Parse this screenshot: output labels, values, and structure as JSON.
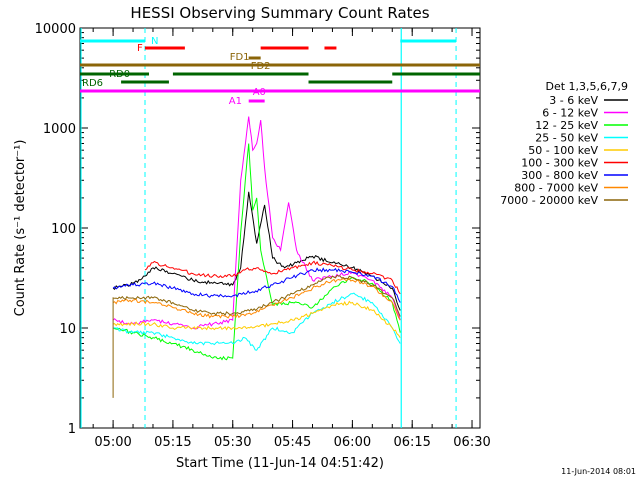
{
  "chart_data": {
    "type": "line",
    "title": "HESSI Observing Summary Count Rates",
    "xlabel": "Start Time (11-Jun-14 04:51:42)",
    "ylabel": "Count Rate (s⁻¹ detector⁻¹)",
    "y_scale": "log",
    "ylim": [
      1,
      10000
    ],
    "xlim": [
      "04:51:42",
      "06:32:00"
    ],
    "x_ticks": [
      "05:00",
      "05:15",
      "05:30",
      "05:45",
      "06:00",
      "06:15",
      "06:30"
    ],
    "y_ticks": [
      "1",
      "10",
      "100",
      "1000",
      "10000"
    ],
    "footer_date": "11-Jun-2014 08:01",
    "legend": {
      "title": "Det 1,3,5,6,7,9",
      "placement": "right"
    },
    "series": [
      {
        "name": "3 - 6 keV",
        "color": "#000000",
        "points": [
          [
            "05:00",
            25
          ],
          [
            "05:05",
            28
          ],
          [
            "05:08",
            33
          ],
          [
            "05:10",
            40
          ],
          [
            "05:15",
            35
          ],
          [
            "05:20",
            30
          ],
          [
            "05:25",
            28
          ],
          [
            "05:30",
            27
          ],
          [
            "05:32",
            40
          ],
          [
            "05:34",
            230
          ],
          [
            "05:36",
            70
          ],
          [
            "05:38",
            170
          ],
          [
            "05:40",
            50
          ],
          [
            "05:43",
            40
          ],
          [
            "05:46",
            45
          ],
          [
            "05:50",
            52
          ],
          [
            "05:55",
            45
          ],
          [
            "06:00",
            40
          ],
          [
            "06:05",
            33
          ],
          [
            "06:10",
            25
          ],
          [
            "06:12",
            15
          ]
        ]
      },
      {
        "name": "6 - 12 keV",
        "color": "#ff00ff",
        "points": [
          [
            "05:00",
            12
          ],
          [
            "05:05",
            11
          ],
          [
            "05:10",
            12
          ],
          [
            "05:15",
            11
          ],
          [
            "05:20",
            10
          ],
          [
            "05:25",
            11
          ],
          [
            "05:30",
            12
          ],
          [
            "05:32",
            300
          ],
          [
            "05:34",
            1300
          ],
          [
            "05:35",
            600
          ],
          [
            "05:36",
            700
          ],
          [
            "05:37",
            1200
          ],
          [
            "05:38",
            400
          ],
          [
            "05:40",
            80
          ],
          [
            "05:42",
            60
          ],
          [
            "05:44",
            180
          ],
          [
            "05:46",
            60
          ],
          [
            "05:50",
            30
          ],
          [
            "05:55",
            33
          ],
          [
            "06:00",
            36
          ],
          [
            "06:05",
            30
          ],
          [
            "06:10",
            20
          ],
          [
            "06:12",
            12
          ]
        ]
      },
      {
        "name": "12 - 25 keV",
        "color": "#00ff00",
        "points": [
          [
            "05:00",
            10
          ],
          [
            "05:05",
            9
          ],
          [
            "05:10",
            8
          ],
          [
            "05:15",
            7
          ],
          [
            "05:20",
            6
          ],
          [
            "05:25",
            5
          ],
          [
            "05:30",
            5
          ],
          [
            "05:32",
            90
          ],
          [
            "05:34",
            700
          ],
          [
            "05:35",
            150
          ],
          [
            "05:36",
            200
          ],
          [
            "05:37",
            60
          ],
          [
            "05:40",
            17
          ],
          [
            "05:45",
            18
          ],
          [
            "05:50",
            16
          ],
          [
            "05:55",
            25
          ],
          [
            "06:00",
            32
          ],
          [
            "06:05",
            28
          ],
          [
            "06:10",
            18
          ],
          [
            "06:12",
            9
          ]
        ]
      },
      {
        "name": "25 - 50 keV",
        "color": "#00ffff",
        "points": [
          [
            "05:00",
            10
          ],
          [
            "05:05",
            9
          ],
          [
            "05:10",
            9
          ],
          [
            "05:15",
            8
          ],
          [
            "05:20",
            7
          ],
          [
            "05:25",
            7
          ],
          [
            "05:30",
            7
          ],
          [
            "05:33",
            8
          ],
          [
            "05:36",
            6
          ],
          [
            "05:40",
            10
          ],
          [
            "05:45",
            9
          ],
          [
            "05:50",
            14
          ],
          [
            "05:55",
            18
          ],
          [
            "06:00",
            22
          ],
          [
            "06:05",
            18
          ],
          [
            "06:10",
            10
          ],
          [
            "06:12",
            7
          ]
        ]
      },
      {
        "name": "50 - 100 keV",
        "color": "#ffcc00",
        "points": [
          [
            "05:00",
            11
          ],
          [
            "05:05",
            11
          ],
          [
            "05:10",
            11
          ],
          [
            "05:15",
            10
          ],
          [
            "05:20",
            10
          ],
          [
            "05:25",
            10
          ],
          [
            "05:30",
            10
          ],
          [
            "05:35",
            10
          ],
          [
            "05:40",
            11
          ],
          [
            "05:45",
            12
          ],
          [
            "05:50",
            14
          ],
          [
            "05:55",
            17
          ],
          [
            "06:00",
            18
          ],
          [
            "06:05",
            15
          ],
          [
            "06:10",
            10
          ],
          [
            "06:12",
            8
          ]
        ]
      },
      {
        "name": "100 - 300 keV",
        "color": "#ff0000",
        "points": [
          [
            "05:08",
            38
          ],
          [
            "05:10",
            45
          ],
          [
            "05:15",
            40
          ],
          [
            "05:20",
            35
          ],
          [
            "05:25",
            33
          ],
          [
            "05:30",
            33
          ],
          [
            "05:33",
            38
          ],
          [
            "05:36",
            40
          ],
          [
            "05:40",
            35
          ],
          [
            "05:45",
            40
          ],
          [
            "05:50",
            45
          ],
          [
            "05:55",
            42
          ],
          [
            "06:00",
            38
          ],
          [
            "06:05",
            35
          ],
          [
            "06:10",
            30
          ],
          [
            "06:12",
            22
          ]
        ]
      },
      {
        "name": "300 - 800 keV",
        "color": "#0000ff",
        "points": [
          [
            "05:00",
            25
          ],
          [
            "05:05",
            27
          ],
          [
            "05:10",
            28
          ],
          [
            "05:15",
            25
          ],
          [
            "05:20",
            22
          ],
          [
            "05:25",
            21
          ],
          [
            "05:30",
            21
          ],
          [
            "05:35",
            23
          ],
          [
            "05:40",
            27
          ],
          [
            "05:45",
            32
          ],
          [
            "05:50",
            38
          ],
          [
            "05:55",
            38
          ],
          [
            "06:00",
            36
          ],
          [
            "06:05",
            33
          ],
          [
            "06:10",
            26
          ],
          [
            "06:12",
            18
          ]
        ]
      },
      {
        "name": "800 - 7000 keV",
        "color": "#ff8800",
        "points": [
          [
            "05:00",
            18
          ],
          [
            "05:05",
            19
          ],
          [
            "05:10",
            18
          ],
          [
            "05:15",
            16
          ],
          [
            "05:20",
            14
          ],
          [
            "05:25",
            13
          ],
          [
            "05:30",
            13
          ],
          [
            "05:35",
            14
          ],
          [
            "05:40",
            17
          ],
          [
            "05:45",
            20
          ],
          [
            "05:50",
            25
          ],
          [
            "05:55",
            30
          ],
          [
            "06:00",
            30
          ],
          [
            "06:05",
            26
          ],
          [
            "06:10",
            18
          ],
          [
            "06:12",
            12
          ]
        ]
      },
      {
        "name": "7000 - 20000 keV",
        "color": "#8b6508",
        "points": [
          [
            "05:00",
            2
          ],
          [
            "05:00",
            20
          ],
          [
            "05:05",
            20
          ],
          [
            "05:10",
            20
          ],
          [
            "05:15",
            18
          ],
          [
            "05:20",
            15
          ],
          [
            "05:25",
            14
          ],
          [
            "05:30",
            14
          ],
          [
            "05:35",
            15
          ],
          [
            "05:40",
            18
          ],
          [
            "05:45",
            22
          ],
          [
            "05:50",
            27
          ],
          [
            "05:55",
            33
          ],
          [
            "06:00",
            32
          ],
          [
            "06:05",
            27
          ],
          [
            "06:10",
            20
          ],
          [
            "06:12",
            13
          ]
        ]
      }
    ],
    "flag_bars": [
      {
        "label": "N",
        "color": "#00ffff",
        "segments": [
          [
            "04:51:42",
            "05:08"
          ],
          [
            "06:12",
            "06:26"
          ]
        ]
      },
      {
        "label": "F",
        "color": "#ff0000",
        "segments": [
          [
            "05:08",
            "05:18"
          ],
          [
            "05:37",
            "05:49"
          ],
          [
            "05:53",
            "05:56"
          ]
        ]
      },
      {
        "label": "FD1",
        "color": "#8b6508",
        "segments": [
          [
            "04:51:42",
            "06:32"
          ]
        ]
      },
      {
        "label": "FD2",
        "color": "#8b6508",
        "segments": [
          [
            "05:34",
            "05:37"
          ]
        ]
      },
      {
        "label": "RD0",
        "color": "#006400",
        "segments": [
          [
            "04:51:42",
            "05:09"
          ],
          [
            "05:15",
            "05:49"
          ],
          [
            "06:10",
            "06:32"
          ]
        ]
      },
      {
        "label": "RD6",
        "color": "#006400",
        "segments": [
          [
            "05:02",
            "05:14"
          ],
          [
            "05:49",
            "06:10"
          ]
        ]
      },
      {
        "label": "A0",
        "color": "#ff00ff",
        "segments": [
          [
            "04:51:42",
            "06:32"
          ]
        ]
      },
      {
        "label": "A1",
        "color": "#ff00ff",
        "segments": [
          [
            "05:34",
            "05:38"
          ]
        ]
      }
    ],
    "saa_markers": [
      "05:08",
      "06:26"
    ],
    "night_markers": [
      "04:51:42",
      "06:12"
    ]
  }
}
